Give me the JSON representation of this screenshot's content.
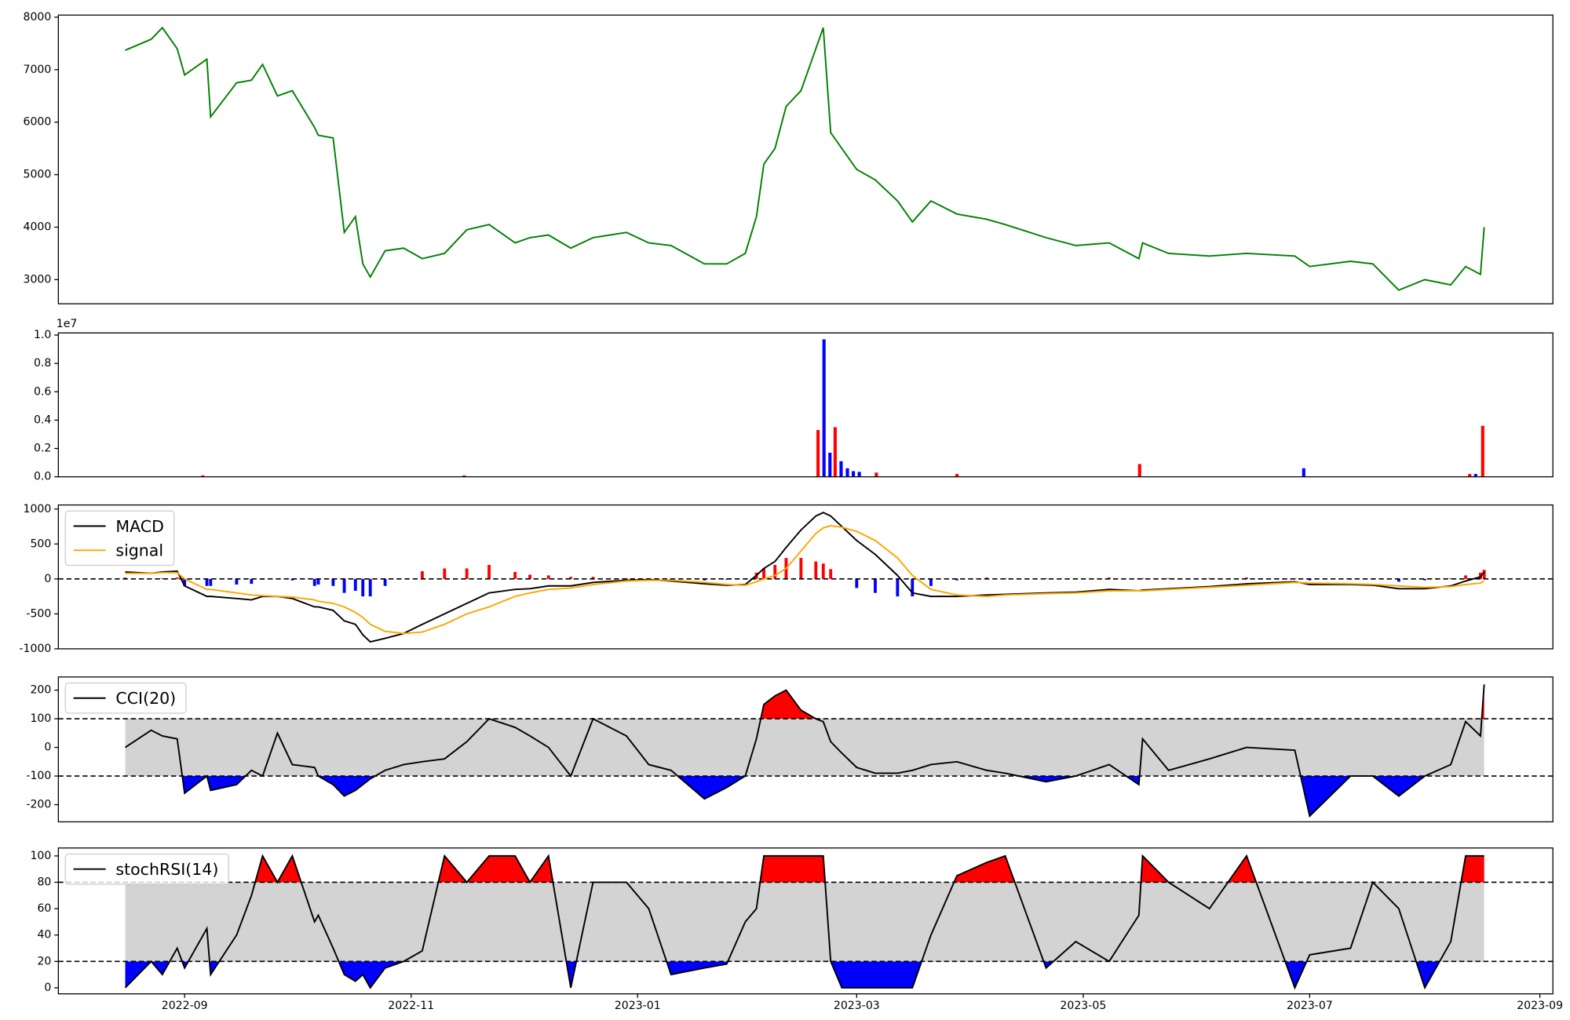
{
  "chart_data": [
    {
      "type": "line",
      "x": [
        -16,
        -9,
        -6,
        -2,
        0,
        6,
        7,
        14,
        18,
        21,
        25,
        29,
        35,
        36,
        40,
        43,
        46,
        48,
        50,
        54,
        59,
        64,
        70,
        76,
        82,
        89,
        93,
        98,
        104,
        110,
        119,
        125,
        131,
        140,
        146,
        151,
        154,
        156,
        159,
        162,
        166,
        170,
        172,
        174,
        177,
        181,
        186,
        192,
        196,
        201,
        208,
        216,
        221,
        232,
        240,
        249,
        257,
        258,
        265,
        276,
        286,
        299,
        303,
        314,
        320,
        327,
        334,
        341,
        345,
        349,
        350
      ],
      "series": [
        {
          "color": "#008000",
          "values": [
            7370,
            7580,
            7800,
            7400,
            6900,
            7200,
            6100,
            6750,
            6800,
            7100,
            6500,
            6600,
            5900,
            5750,
            5700,
            3900,
            4200,
            3300,
            3050,
            3550,
            3600,
            3400,
            3500,
            3950,
            4050,
            3700,
            3800,
            3850,
            3600,
            3800,
            3900,
            3700,
            3650,
            3300,
            3300,
            3500,
            4200,
            5200,
            5500,
            6300,
            6600,
            7400,
            7800,
            5800,
            5500,
            5100,
            4900,
            4500,
            4100,
            4500,
            4250,
            4150,
            4050,
            3800,
            3650,
            3700,
            3400,
            3700,
            3500,
            3450,
            3500,
            3450,
            3250,
            3350,
            3300,
            2800,
            3000,
            2900,
            3250,
            3100,
            4000
          ]
        }
      ],
      "xlim": [
        -34,
        368.5
      ],
      "ylim": [
        2540,
        8040
      ],
      "yticks": [
        3000,
        4000,
        5000,
        6000,
        7000,
        8000
      ]
    },
    {
      "type": "bar",
      "x": [
        4.9,
        75.3,
        170.6,
        172.2,
        173.8,
        175.2,
        176.8,
        178.5,
        180.1,
        181.7,
        186.3,
        208,
        257.2,
        301.4,
        346.1,
        347.7,
        349.6
      ],
      "values": [
        0.01,
        0.01,
        0.33,
        0.97,
        0.17,
        0.35,
        0.11,
        0.06,
        0.04,
        0.035,
        0.03,
        0.02,
        0.09,
        0.06,
        0.02,
        0.02,
        0.36
      ],
      "colors": [
        "#ff0000",
        "#ff0000",
        "#ff0000",
        "#0000ff",
        "#0000ff",
        "#ff0000",
        "#0000ff",
        "#0000ff",
        "#0000ff",
        "#0000ff",
        "#ff0000",
        "#ff0000",
        "#ff0000",
        "#0000ff",
        "#ff0000",
        "#0000ff",
        "#ff0000"
      ],
      "offset_label": "1e7",
      "xlim": [
        -34,
        368.5
      ],
      "ylim": [
        0,
        1.015
      ],
      "yticks": [
        {
          "value": 0,
          "label": "0.0"
        },
        0.2,
        0.4,
        0.6,
        0.8,
        {
          "value": 1,
          "label": "1.0"
        }
      ]
    },
    {
      "type": "line",
      "x": [
        -16,
        -9,
        -6,
        -2,
        0,
        6,
        7,
        14,
        18,
        21,
        25,
        29,
        35,
        36,
        40,
        43,
        46,
        48,
        50,
        54,
        59,
        64,
        70,
        76,
        82,
        89,
        93,
        98,
        104,
        110,
        119,
        125,
        131,
        140,
        146,
        151,
        154,
        156,
        159,
        162,
        166,
        170,
        172,
        174,
        177,
        181,
        186,
        192,
        196,
        201,
        208,
        216,
        221,
        232,
        240,
        249,
        257,
        258,
        265,
        276,
        286,
        299,
        303,
        314,
        320,
        327,
        334,
        341,
        345,
        349,
        350
      ],
      "series": [
        {
          "name": "MACD",
          "color": "#000000",
          "values": [
            100,
            80,
            100,
            110,
            -100,
            -250,
            -250,
            -280,
            -300,
            -250,
            -250,
            -280,
            -400,
            -400,
            -450,
            -600,
            -650,
            -800,
            -900,
            -850,
            -780,
            -650,
            -500,
            -350,
            -200,
            -150,
            -140,
            -100,
            -100,
            -50,
            -20,
            -10,
            -30,
            -70,
            -90,
            -80,
            50,
            150,
            250,
            450,
            700,
            900,
            950,
            900,
            750,
            550,
            350,
            50,
            -200,
            -250,
            -250,
            -230,
            -220,
            -200,
            -190,
            -150,
            -170,
            -160,
            -140,
            -110,
            -70,
            -40,
            -80,
            -80,
            -90,
            -140,
            -140,
            -100,
            -30,
            30,
            100
          ]
        },
        {
          "name": "signal",
          "color": "#ffa500",
          "values": [
            80,
            80,
            90,
            90,
            0,
            -150,
            -150,
            -200,
            -230,
            -240,
            -250,
            -260,
            -300,
            -320,
            -350,
            -400,
            -480,
            -550,
            -650,
            -750,
            -780,
            -760,
            -650,
            -500,
            -400,
            -250,
            -200,
            -150,
            -130,
            -80,
            -30,
            -20,
            -20,
            -50,
            -80,
            -90,
            -40,
            0,
            50,
            150,
            400,
            650,
            730,
            760,
            740,
            680,
            550,
            300,
            50,
            -150,
            -230,
            -250,
            -230,
            -210,
            -200,
            -170,
            -170,
            -170,
            -150,
            -120,
            -90,
            -50,
            -60,
            -70,
            -80,
            -100,
            -120,
            -110,
            -80,
            -60,
            -30
          ]
        }
      ],
      "histogram": {
        "up_color": "#ff0000",
        "down_color": "#0000ff",
        "values": [
          20,
          0,
          10,
          20,
          -100,
          -100,
          -100,
          -80,
          -70,
          -10,
          0,
          -20,
          -100,
          -80,
          -100,
          -200,
          -170,
          -250,
          -250,
          -100,
          0,
          110,
          150,
          150,
          200,
          100,
          60,
          50,
          30,
          30,
          10,
          10,
          -10,
          -20,
          -10,
          10,
          90,
          150,
          200,
          300,
          300,
          250,
          220,
          140,
          10,
          -130,
          -200,
          -250,
          -250,
          -100,
          -20,
          20,
          10,
          10,
          10,
          20,
          0,
          10,
          10,
          10,
          20,
          10,
          -20,
          -10,
          -10,
          -40,
          -20,
          10,
          50,
          90,
          130
        ]
      },
      "levels": [
        0
      ],
      "legend": "upper left",
      "xlim": [
        -34,
        368.5
      ],
      "ylim": [
        -1000,
        1058
      ],
      "yticks": [
        -1000,
        -500,
        0,
        500,
        1000
      ]
    },
    {
      "type": "line",
      "x": [
        -16,
        -9,
        -6,
        -2,
        0,
        6,
        7,
        14,
        18,
        21,
        25,
        29,
        35,
        36,
        40,
        43,
        46,
        48,
        50,
        54,
        59,
        64,
        70,
        76,
        82,
        89,
        93,
        98,
        104,
        110,
        119,
        125,
        131,
        140,
        146,
        151,
        154,
        156,
        159,
        162,
        166,
        170,
        172,
        174,
        177,
        181,
        186,
        192,
        196,
        201,
        208,
        216,
        221,
        232,
        240,
        249,
        257,
        258,
        265,
        276,
        286,
        299,
        303,
        314,
        320,
        327,
        334,
        341,
        345,
        349,
        350
      ],
      "series": [
        {
          "name": "CCI(20)",
          "color": "#000000",
          "values": [
            0,
            60,
            40,
            30,
            -160,
            -100,
            -150,
            -130,
            -80,
            -100,
            50,
            -60,
            -70,
            -100,
            -130,
            -170,
            -150,
            -130,
            -110,
            -80,
            -60,
            -50,
            -40,
            20,
            100,
            70,
            40,
            0,
            -100,
            100,
            40,
            -60,
            -80,
            -180,
            -140,
            -100,
            30,
            150,
            180,
            200,
            130,
            100,
            90,
            20,
            -20,
            -70,
            -90,
            -90,
            -80,
            -60,
            -50,
            -80,
            -90,
            -120,
            -100,
            -60,
            -130,
            30,
            -80,
            -40,
            0,
            -10,
            -240,
            -100,
            -100,
            -170,
            -100,
            -60,
            90,
            40,
            220
          ]
        }
      ],
      "levels": [
        -100,
        100
      ],
      "fill_colors": {
        "band": "#d3d3d3",
        "above": "#ff0000",
        "below": "#0000ff"
      },
      "legend": "upper left",
      "xlim": [
        -34,
        368.5
      ],
      "ylim": [
        -260,
        246
      ],
      "yticks": [
        -200,
        -100,
        0,
        100,
        200
      ]
    },
    {
      "type": "line",
      "x": [
        -16,
        -9,
        -6,
        -2,
        0,
        6,
        7,
        14,
        18,
        21,
        25,
        29,
        35,
        36,
        40,
        43,
        46,
        48,
        50,
        54,
        59,
        64,
        70,
        76,
        82,
        89,
        93,
        98,
        104,
        110,
        119,
        125,
        131,
        140,
        146,
        151,
        154,
        156,
        159,
        162,
        166,
        170,
        172,
        174,
        177,
        181,
        186,
        192,
        196,
        201,
        208,
        216,
        221,
        232,
        240,
        249,
        257,
        258,
        265,
        276,
        286,
        299,
        303,
        314,
        320,
        327,
        334,
        341,
        345,
        349,
        350
      ],
      "series": [
        {
          "name": "stochRSI(14)",
          "color": "#000000",
          "values": [
            0,
            20,
            10,
            30,
            15,
            45,
            10,
            40,
            70,
            100,
            80,
            100,
            50,
            55,
            30,
            10,
            5,
            10,
            0,
            15,
            20,
            28,
            100,
            80,
            100,
            100,
            80,
            100,
            0,
            80,
            80,
            60,
            10,
            15,
            18,
            50,
            60,
            100,
            100,
            100,
            100,
            100,
            100,
            20,
            0,
            0,
            0,
            0,
            0,
            40,
            85,
            95,
            100,
            15,
            35,
            20,
            55,
            100,
            80,
            60,
            100,
            0,
            25,
            30,
            80,
            60,
            0,
            35,
            100,
            100,
            100
          ]
        }
      ],
      "levels": [
        20,
        80
      ],
      "fill_colors": {
        "band": "#d3d3d3",
        "above": "#ff0000",
        "below": "#0000ff"
      },
      "legend": "upper left",
      "xlim": [
        -34,
        368.5
      ],
      "ylim": [
        -4.6,
        106
      ],
      "yticks": [
        0,
        20,
        40,
        60,
        80,
        100
      ],
      "xticks": [
        {
          "value": 0,
          "label": "2022-09"
        },
        {
          "value": 61,
          "label": "2022-11"
        },
        {
          "value": 122,
          "label": "2023-01"
        },
        {
          "value": 181,
          "label": "2023-03"
        },
        {
          "value": 242,
          "label": "2023-05"
        },
        {
          "value": 303,
          "label": "2023-07"
        },
        {
          "value": 365,
          "label": "2023-09"
        }
      ]
    }
  ]
}
